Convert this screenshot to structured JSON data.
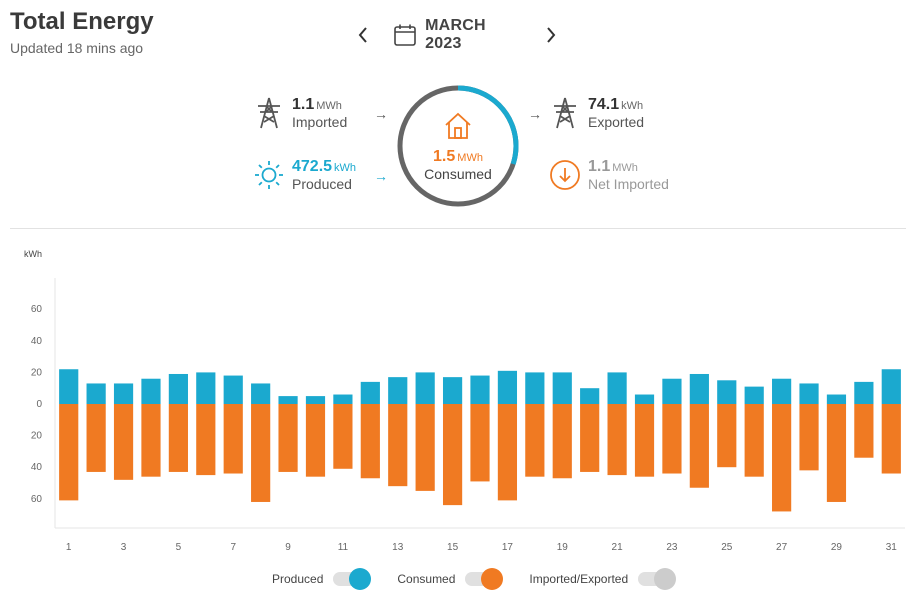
{
  "header": {
    "title": "Total Energy",
    "updated": "Updated 18 mins ago"
  },
  "month_nav": {
    "label": "MARCH 2023"
  },
  "stats": {
    "imported": {
      "value": "1.1",
      "unit": "MWh",
      "label": "Imported"
    },
    "produced": {
      "value": "472.5",
      "unit": "kWh",
      "label": "Produced"
    },
    "consumed": {
      "value": "1.5",
      "unit": "MWh",
      "label": "Consumed"
    },
    "exported": {
      "value": "74.1",
      "unit": "kWh",
      "label": "Exported"
    },
    "net_imported": {
      "value": "1.1",
      "unit": "MWh",
      "label": "Net Imported"
    }
  },
  "arrows": {
    "right": "→"
  },
  "colors": {
    "produced": "#1ba9cf",
    "consumed": "#f07a22",
    "imported_exported": "#cccccc",
    "ring_base": "#666666"
  },
  "consumed_ring_fraction": 0.3,
  "legend": [
    {
      "label": "Produced",
      "color": "#1ba9cf"
    },
    {
      "label": "Consumed",
      "color": "#f07a22"
    },
    {
      "label": "Imported/Exported",
      "color": "#cccccc"
    }
  ],
  "chart_data": {
    "type": "bar",
    "ylabel": "kWh",
    "ylim": [
      -75,
      80
    ],
    "y_ticks": [
      60,
      40,
      20,
      0,
      -20,
      -40,
      -60
    ],
    "y_tick_labels": [
      "60",
      "40",
      "20",
      "0",
      "20",
      "40",
      "60"
    ],
    "x_tick_labels": [
      "1",
      "3",
      "5",
      "7",
      "9",
      "11",
      "13",
      "15",
      "17",
      "19",
      "21",
      "23",
      "25",
      "27",
      "29",
      "31"
    ],
    "days": [
      1,
      2,
      3,
      4,
      5,
      6,
      7,
      8,
      9,
      10,
      11,
      12,
      13,
      14,
      15,
      16,
      17,
      18,
      19,
      20,
      21,
      22,
      23,
      24,
      25,
      26,
      27,
      28,
      29,
      30,
      31
    ],
    "series": [
      {
        "name": "Produced",
        "color": "#1ba9cf",
        "values": [
          22,
          13,
          13,
          16,
          19,
          20,
          18,
          13,
          5,
          5,
          6,
          14,
          17,
          20,
          17,
          18,
          21,
          20,
          20,
          10,
          20,
          6,
          16,
          19,
          15,
          11,
          16,
          13,
          6,
          14,
          22
        ]
      },
      {
        "name": "Consumed",
        "color": "#f07a22",
        "values": [
          -61,
          -43,
          -48,
          -46,
          -43,
          -45,
          -44,
          -62,
          -43,
          -46,
          -41,
          -47,
          -52,
          -55,
          -64,
          -49,
          -61,
          -46,
          -47,
          -43,
          -45,
          -46,
          -44,
          -53,
          -40,
          -46,
          -68,
          -42,
          -62,
          -34,
          -44
        ]
      }
    ]
  }
}
